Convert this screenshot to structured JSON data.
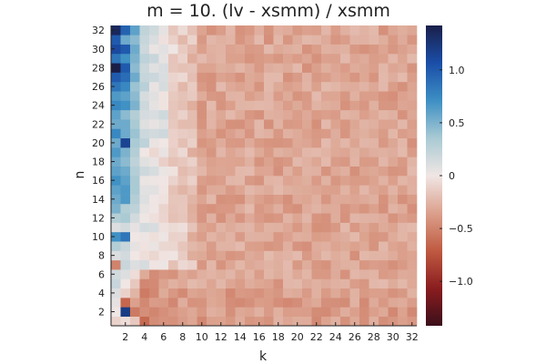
{
  "chart_data": {
    "type": "heatmap",
    "title": "m = 10. (lv - xsmm) / xsmm",
    "xlabel": "k",
    "ylabel": "n",
    "x_range": [
      1,
      32
    ],
    "y_range": [
      1,
      32
    ],
    "x_ticks": [
      "2",
      "4",
      "6",
      "8",
      "10",
      "12",
      "14",
      "16",
      "18",
      "20",
      "22",
      "24",
      "26",
      "28",
      "30",
      "32"
    ],
    "y_ticks": [
      "2",
      "4",
      "6",
      "8",
      "10",
      "12",
      "14",
      "16",
      "18",
      "20",
      "22",
      "24",
      "26",
      "28",
      "30",
      "32"
    ],
    "colorbar": {
      "range": [
        -1.42,
        1.42
      ],
      "ticks": [
        "1.0",
        "0.5",
        "0",
        "−0.5",
        "−1.0"
      ],
      "tick_values": [
        1.0,
        0.5,
        0,
        -0.5,
        -1.0
      ],
      "colormap": "balance",
      "stops": [
        "#3b0f1a",
        "#8a1d1f",
        "#c05a41",
        "#dba08c",
        "#f0e6e4",
        "#a9cad4",
        "#3d8fc4",
        "#1a4ea8",
        "#1a1f4a"
      ]
    },
    "grid": false,
    "typical_value_right_region": -0.33,
    "column_k1": [
      -0.1,
      0.0,
      0.05,
      0.1,
      0.2,
      0.15,
      -0.5,
      0.1,
      0.3,
      0.7,
      0.1,
      0.3,
      0.5,
      0.55,
      0.6,
      0.7,
      0.6,
      0.55,
      0.65,
      0.55,
      0.75,
      0.55,
      0.6,
      0.75,
      0.65,
      0.85,
      1.0,
      1.42,
      0.85,
      1.1,
      1.0,
      1.35
    ],
    "column_k2": [
      -0.05,
      1.2,
      -0.65,
      -0.1,
      0.0,
      0.1,
      0.2,
      0.15,
      0.2,
      0.85,
      0.15,
      0.35,
      0.3,
      0.65,
      0.65,
      0.6,
      0.55,
      0.45,
      0.5,
      1.15,
      0.55,
      0.55,
      0.45,
      0.7,
      0.6,
      0.75,
      0.9,
      1.0,
      0.7,
      1.0,
      0.55,
      0.95
    ],
    "column_k3": [
      -0.15,
      -0.55,
      -0.35,
      -0.25,
      -0.15,
      -0.05,
      0.1,
      0.0,
      0.05,
      0.0,
      0.05,
      0.15,
      0.25,
      0.3,
      0.35,
      0.35,
      0.3,
      0.25,
      0.3,
      0.35,
      0.4,
      0.35,
      0.3,
      0.5,
      0.45,
      0.4,
      0.55,
      0.45,
      0.5,
      0.55,
      0.45,
      0.6
    ]
  }
}
